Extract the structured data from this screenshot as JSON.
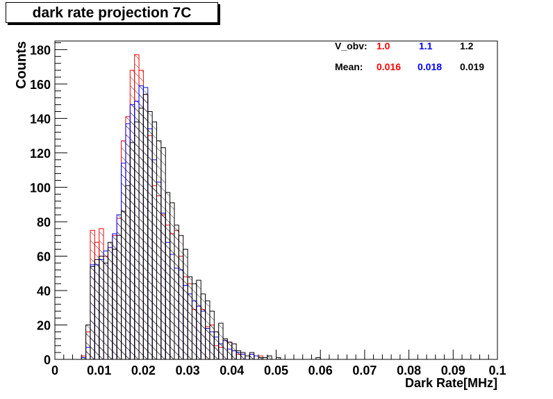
{
  "chart_data": {
    "type": "histogram",
    "title": "dark rate projection 7C",
    "xlabel": "Dark Rate[MHz]",
    "ylabel": "Counts",
    "xlim": [
      0,
      0.1
    ],
    "ylim": [
      0,
      185
    ],
    "x_ticks": [
      "0",
      "0.01",
      "0.02",
      "0.03",
      "0.04",
      "0.05",
      "0.06",
      "0.07",
      "0.08",
      "0.09",
      "0.1"
    ],
    "y_ticks": [
      "0",
      "20",
      "40",
      "60",
      "80",
      "100",
      "120",
      "140",
      "160",
      "180"
    ],
    "bin_width": 0.001,
    "legend": {
      "header_label": "V_obv:",
      "mean_label": "Mean:",
      "entries": [
        {
          "v_obv": "1.0",
          "mean": "0.016",
          "color": "#ff0000"
        },
        {
          "v_obv": "1.1",
          "mean": "0.018",
          "color": "#0000ff"
        },
        {
          "v_obv": "1.2",
          "mean": "0.019",
          "color": "#000000"
        }
      ]
    },
    "series": [
      {
        "color": "#ff0000",
        "start": 0.006,
        "counts": [
          2,
          16,
          75,
          68,
          76,
          60,
          65,
          72,
          82,
          127,
          141,
          168,
          177,
          168,
          154,
          130,
          101,
          95,
          84,
          78,
          73,
          75,
          60,
          48,
          44,
          29,
          31,
          29,
          19,
          20,
          8,
          7,
          11,
          10,
          5,
          3,
          3,
          2,
          3,
          2,
          2,
          1
        ]
      },
      {
        "color": "#0000ff",
        "start": 0.006,
        "counts": [
          1,
          7,
          55,
          55,
          58,
          63,
          65,
          73,
          84,
          114,
          137,
          148,
          150,
          159,
          158,
          134,
          116,
          103,
          85,
          68,
          61,
          53,
          52,
          43,
          38,
          34,
          31,
          28,
          18,
          16,
          13,
          9,
          11,
          6,
          5,
          4,
          3,
          2,
          3,
          2,
          1
        ]
      },
      {
        "color": "#000000",
        "start": 0.007,
        "counts": [
          20,
          54,
          58,
          60,
          56,
          68,
          64,
          72,
          86,
          101,
          126,
          138,
          146,
          154,
          144,
          138,
          127,
          123,
          97,
          91,
          78,
          72,
          64,
          48,
          44,
          46,
          38,
          34,
          28,
          16,
          21,
          12,
          10,
          9,
          5,
          4,
          2,
          4,
          0,
          1,
          1,
          2,
          0,
          1,
          0,
          0,
          0,
          0,
          0,
          0,
          0,
          0,
          1
        ]
      }
    ]
  }
}
